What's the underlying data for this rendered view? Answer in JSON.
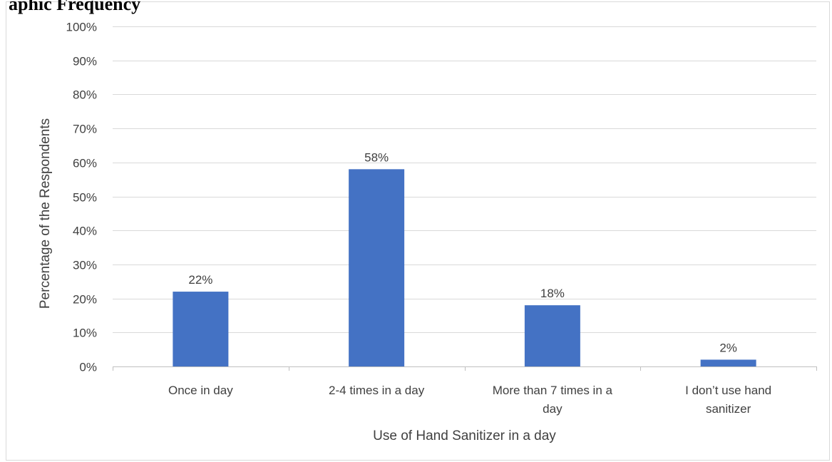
{
  "heading_fragment": "aphic Frequency",
  "chart_data": {
    "type": "bar",
    "categories": [
      "Once in day",
      "2-4 times in a day",
      "More than 7 times in a day",
      "I don’t use hand sanitizer"
    ],
    "values": [
      22,
      58,
      18,
      2
    ],
    "data_labels": [
      "22%",
      "58%",
      "18%",
      "2%"
    ],
    "title": "",
    "xlabel": "Use of Hand Sanitizer in a day",
    "ylabel": "Percentage of the Respondents",
    "ylim": [
      0,
      100
    ],
    "y_ticks": [
      "0%",
      "10%",
      "20%",
      "30%",
      "40%",
      "50%",
      "60%",
      "70%",
      "80%",
      "90%",
      "100%"
    ],
    "grid": true,
    "legend": "none",
    "bar_color": "#4472C4",
    "grid_color": "#D9D9D9",
    "axis_color": "#BFBFBF"
  }
}
